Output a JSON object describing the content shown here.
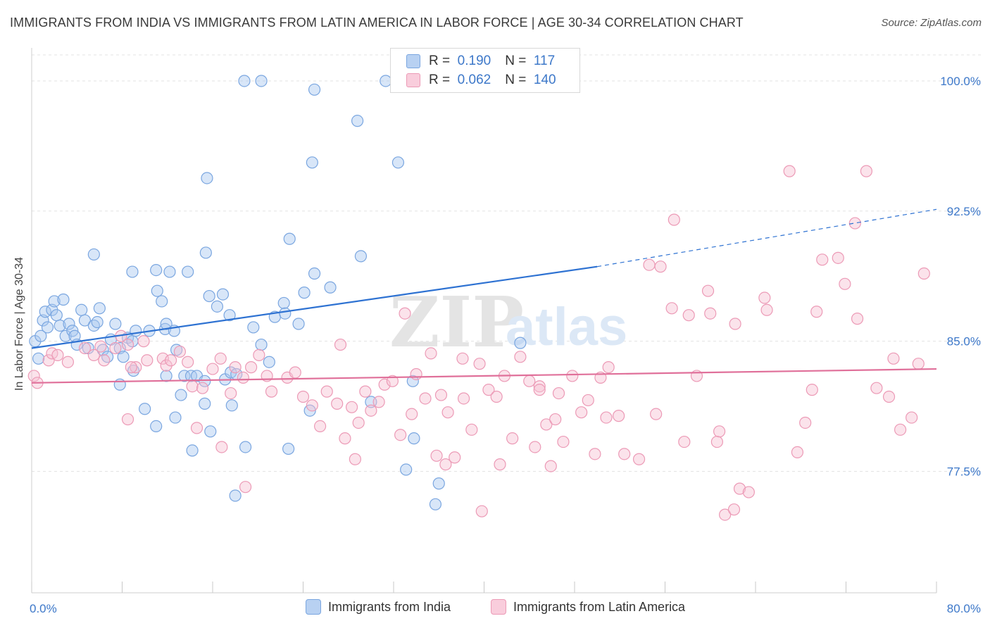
{
  "title": "IMMIGRANTS FROM INDIA VS IMMIGRANTS FROM LATIN AMERICA IN LABOR FORCE | AGE 30-34 CORRELATION CHART",
  "source": "Source: ZipAtlas.com",
  "watermark": {
    "zip": "ZIP",
    "atlas": "atlas"
  },
  "legend": {
    "r_label": "R =",
    "n_label": "N =",
    "india": {
      "r": "0.190",
      "n": "117"
    },
    "latam": {
      "r": "0.062",
      "n": "140"
    }
  },
  "colors": {
    "india_fill": "#a9c8f0",
    "india_stroke": "#7aa6e0",
    "india_line": "#2e72d2",
    "latam_fill": "#f7c0d2",
    "latam_stroke": "#ec9ab6",
    "latam_line": "#e0709a",
    "axis_text": "#3d78c9",
    "grid": "#e3e3e3"
  },
  "chart_data": {
    "type": "scatter",
    "title": "IMMIGRANTS FROM INDIA VS IMMIGRANTS FROM LATIN AMERICA IN LABOR FORCE | AGE 30-34 CORRELATION CHART",
    "xlabel": "",
    "ylabel": "In Labor Force | Age 30-34",
    "xlim": [
      0,
      80
    ],
    "ylim": [
      70.5,
      101.5
    ],
    "x_tick_labels": [
      "0.0%",
      "80.0%"
    ],
    "y_ticks": [
      77.5,
      85.0,
      92.5,
      100.0
    ],
    "y_tick_labels": [
      "77.5%",
      "85.0%",
      "92.5%",
      "100.0%"
    ],
    "grid": true,
    "legend_position": "top-center",
    "series": [
      {
        "name": "Immigrants from India",
        "trend": {
          "x": [
            0,
            50
          ],
          "y": [
            84.6,
            89.3
          ],
          "dashed_extension_to": [
            80,
            92.6
          ]
        },
        "points": [
          [
            0.3,
            85.0
          ],
          [
            0.6,
            84.0
          ],
          [
            0.8,
            85.3
          ],
          [
            1.0,
            86.2
          ],
          [
            1.2,
            86.7
          ],
          [
            1.4,
            85.8
          ],
          [
            1.8,
            86.8
          ],
          [
            2.0,
            87.3
          ],
          [
            2.2,
            86.5
          ],
          [
            2.5,
            85.9
          ],
          [
            2.8,
            87.4
          ],
          [
            3.0,
            85.3
          ],
          [
            3.3,
            86.0
          ],
          [
            3.6,
            85.6
          ],
          [
            3.8,
            85.3
          ],
          [
            4.0,
            84.8
          ],
          [
            4.4,
            86.8
          ],
          [
            4.7,
            86.2
          ],
          [
            5.0,
            84.6
          ],
          [
            5.5,
            85.9
          ],
          [
            5.8,
            86.1
          ],
          [
            6.0,
            86.9
          ],
          [
            6.3,
            84.5
          ],
          [
            6.7,
            84.1
          ],
          [
            7.0,
            85.1
          ],
          [
            7.4,
            86.0
          ],
          [
            7.8,
            84.6
          ],
          [
            8.1,
            84.1
          ],
          [
            8.5,
            85.2
          ],
          [
            8.9,
            85.0
          ],
          [
            9.2,
            85.6
          ],
          [
            10.4,
            85.6
          ],
          [
            11.8,
            85.7
          ],
          [
            11.9,
            86.0
          ],
          [
            12.6,
            85.6
          ],
          [
            12.8,
            84.5
          ],
          [
            5.5,
            90.0
          ],
          [
            8.9,
            89.0
          ],
          [
            11.0,
            89.1
          ],
          [
            12.2,
            89.0
          ],
          [
            13.8,
            89.0
          ],
          [
            11.1,
            87.9
          ],
          [
            11.5,
            87.3
          ],
          [
            15.4,
            90.1
          ],
          [
            15.7,
            87.6
          ],
          [
            16.4,
            87.0
          ],
          [
            16.9,
            87.7
          ],
          [
            17.5,
            86.5
          ],
          [
            19.6,
            85.8
          ],
          [
            20.3,
            84.8
          ],
          [
            21.0,
            83.8
          ],
          [
            21.5,
            86.4
          ],
          [
            22.3,
            87.2
          ],
          [
            22.4,
            86.6
          ],
          [
            22.8,
            90.9
          ],
          [
            23.6,
            86.0
          ],
          [
            24.1,
            87.8
          ],
          [
            25.0,
            88.9
          ],
          [
            26.4,
            88.1
          ],
          [
            29.1,
            89.9
          ],
          [
            15.5,
            94.4
          ],
          [
            24.8,
            95.3
          ],
          [
            28.8,
            97.7
          ],
          [
            32.4,
            95.3
          ],
          [
            18.8,
            100.0
          ],
          [
            20.3,
            100.0
          ],
          [
            25.0,
            99.5
          ],
          [
            31.3,
            100.0
          ],
          [
            7.8,
            82.5
          ],
          [
            9.0,
            83.3
          ],
          [
            10.0,
            81.1
          ],
          [
            11.0,
            80.1
          ],
          [
            11.9,
            83.0
          ],
          [
            12.7,
            80.6
          ],
          [
            13.2,
            81.9
          ],
          [
            13.5,
            83.0
          ],
          [
            14.1,
            83.0
          ],
          [
            14.2,
            78.7
          ],
          [
            14.6,
            83.0
          ],
          [
            15.3,
            81.4
          ],
          [
            15.3,
            82.7
          ],
          [
            15.8,
            79.8
          ],
          [
            17.1,
            82.8
          ],
          [
            17.7,
            81.3
          ],
          [
            17.6,
            83.2
          ],
          [
            18.1,
            83.1
          ],
          [
            18.9,
            78.9
          ],
          [
            18.0,
            76.1
          ],
          [
            22.7,
            78.8
          ],
          [
            24.6,
            81.0
          ],
          [
            30.0,
            81.5
          ],
          [
            33.1,
            77.6
          ],
          [
            33.7,
            82.7
          ],
          [
            33.8,
            79.4
          ],
          [
            35.7,
            75.6
          ],
          [
            36.0,
            76.8
          ],
          [
            43.2,
            84.9
          ]
        ]
      },
      {
        "name": "Immigrants from Latin America",
        "trend": {
          "x": [
            0,
            80
          ],
          "y": [
            82.6,
            83.4
          ]
        },
        "points": [
          [
            0.2,
            83.0
          ],
          [
            0.5,
            82.6
          ],
          [
            1.5,
            83.9
          ],
          [
            1.8,
            84.3
          ],
          [
            2.3,
            84.2
          ],
          [
            3.2,
            83.8
          ],
          [
            4.7,
            84.6
          ],
          [
            5.5,
            84.2
          ],
          [
            6.1,
            84.7
          ],
          [
            6.4,
            83.9
          ],
          [
            7.4,
            84.6
          ],
          [
            7.9,
            85.3
          ],
          [
            8.5,
            84.8
          ],
          [
            9.2,
            83.5
          ],
          [
            9.9,
            85.0
          ],
          [
            10.2,
            83.9
          ],
          [
            11.6,
            84.0
          ],
          [
            11.9,
            83.6
          ],
          [
            12.3,
            83.9
          ],
          [
            13.1,
            84.4
          ],
          [
            13.8,
            83.8
          ],
          [
            14.2,
            82.4
          ],
          [
            15.1,
            82.3
          ],
          [
            16.0,
            83.4
          ],
          [
            16.7,
            84.0
          ],
          [
            17.6,
            82.0
          ],
          [
            18.0,
            83.5
          ],
          [
            18.7,
            82.9
          ],
          [
            19.4,
            83.5
          ],
          [
            20.1,
            84.2
          ],
          [
            20.8,
            83.0
          ],
          [
            21.2,
            82.1
          ],
          [
            22.6,
            82.9
          ],
          [
            23.3,
            83.2
          ],
          [
            24.0,
            81.8
          ],
          [
            24.8,
            81.3
          ],
          [
            25.5,
            80.1
          ],
          [
            26.1,
            82.1
          ],
          [
            27.0,
            81.4
          ],
          [
            27.7,
            79.4
          ],
          [
            28.3,
            81.2
          ],
          [
            28.9,
            80.3
          ],
          [
            29.5,
            82.1
          ],
          [
            30.0,
            81.0
          ],
          [
            30.7,
            81.5
          ],
          [
            31.2,
            82.5
          ],
          [
            31.9,
            82.7
          ],
          [
            32.6,
            79.6
          ],
          [
            33.6,
            80.8
          ],
          [
            34.0,
            83.1
          ],
          [
            34.8,
            81.7
          ],
          [
            35.3,
            84.3
          ],
          [
            36.2,
            81.9
          ],
          [
            36.8,
            80.9
          ],
          [
            37.4,
            78.3
          ],
          [
            38.2,
            81.7
          ],
          [
            38.9,
            79.9
          ],
          [
            39.6,
            83.7
          ],
          [
            40.4,
            82.2
          ],
          [
            41.1,
            81.8
          ],
          [
            41.8,
            83.0
          ],
          [
            42.5,
            79.4
          ],
          [
            43.2,
            84.1
          ],
          [
            44.0,
            82.7
          ],
          [
            44.9,
            82.4
          ],
          [
            45.5,
            80.2
          ],
          [
            46.3,
            80.5
          ],
          [
            46.6,
            82.0
          ],
          [
            47.0,
            79.2
          ],
          [
            47.8,
            83.0
          ],
          [
            48.6,
            80.9
          ],
          [
            49.2,
            81.6
          ],
          [
            50.3,
            82.9
          ],
          [
            50.8,
            80.6
          ],
          [
            51.9,
            80.7
          ],
          [
            52.4,
            78.5
          ],
          [
            53.7,
            78.2
          ],
          [
            54.6,
            89.4
          ],
          [
            55.6,
            89.3
          ],
          [
            56.6,
            86.9
          ],
          [
            57.7,
            79.2
          ],
          [
            58.1,
            86.5
          ],
          [
            59.8,
            87.9
          ],
          [
            60.0,
            86.6
          ],
          [
            60.8,
            79.8
          ],
          [
            62.2,
            86.0
          ],
          [
            62.6,
            76.5
          ],
          [
            63.4,
            76.3
          ],
          [
            64.8,
            87.5
          ],
          [
            65.0,
            86.8
          ],
          [
            67.0,
            94.8
          ],
          [
            67.7,
            78.6
          ],
          [
            68.4,
            80.3
          ],
          [
            69.4,
            86.7
          ],
          [
            69.9,
            89.7
          ],
          [
            71.3,
            89.8
          ],
          [
            71.9,
            88.3
          ],
          [
            73.0,
            86.3
          ],
          [
            73.8,
            94.8
          ],
          [
            75.8,
            81.8
          ],
          [
            76.8,
            79.9
          ],
          [
            77.8,
            80.6
          ],
          [
            78.4,
            83.7
          ],
          [
            78.9,
            88.9
          ],
          [
            8.5,
            80.5
          ],
          [
            14.6,
            80.0
          ],
          [
            16.8,
            78.9
          ],
          [
            18.9,
            76.6
          ],
          [
            28.6,
            78.2
          ],
          [
            35.8,
            78.4
          ],
          [
            36.6,
            77.9
          ],
          [
            39.8,
            75.2
          ],
          [
            41.4,
            77.9
          ],
          [
            44.5,
            78.9
          ],
          [
            45.9,
            77.8
          ],
          [
            49.8,
            78.5
          ],
          [
            61.3,
            75.0
          ],
          [
            62.1,
            75.3
          ],
          [
            58.8,
            83.0
          ],
          [
            38.1,
            84.0
          ],
          [
            33.0,
            86.6
          ],
          [
            27.3,
            84.8
          ],
          [
            8.8,
            83.5
          ],
          [
            44.9,
            82.2
          ],
          [
            55.2,
            80.8
          ],
          [
            60.6,
            79.2
          ],
          [
            74.7,
            82.3
          ],
          [
            76.2,
            84.0
          ],
          [
            51.0,
            83.5
          ],
          [
            69.0,
            82.2
          ],
          [
            56.8,
            92.0
          ],
          [
            72.8,
            91.8
          ]
        ]
      }
    ]
  }
}
